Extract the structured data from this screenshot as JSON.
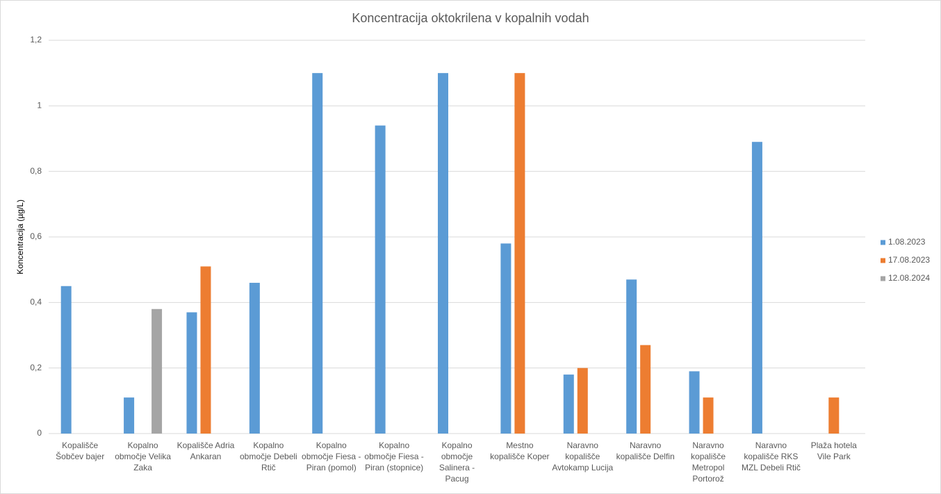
{
  "chart_data": {
    "type": "bar",
    "title": "Koncentracija oktokrilena v kopalnih vodah",
    "y_label": "Koncentracija (µg/L)",
    "categories": [
      "Kopališče Šobčev bajer",
      "Kopalno območje Velika Zaka",
      "Kopališče Adria Ankaran",
      "Kopalno območje Debeli Rtič",
      "Kopalno območje Fiesa - Piran (pomol)",
      "Kopalno območje Fiesa - Piran (stopnice)",
      "Kopalno območje Salinera - Pacug",
      "Mestno kopališče Koper",
      "Naravno kopališče Avtokamp Lucija",
      "Naravno kopališče Delfin",
      "Naravno kopališče Metropol Portorož",
      "Naravno kopališče RKS MZL Debeli Rtič",
      "Plaža hotela Vile Park"
    ],
    "series": [
      {
        "name": "1.08.2023",
        "color": "#5b9bd5",
        "values": [
          0.45,
          0.11,
          0.37,
          0.46,
          1.1,
          0.94,
          1.1,
          0.58,
          0.18,
          0.47,
          0.19,
          0.89,
          null
        ]
      },
      {
        "name": "17.08.2023",
        "color": "#ed7d31",
        "values": [
          null,
          null,
          0.51,
          null,
          null,
          null,
          null,
          1.1,
          0.2,
          0.27,
          0.11,
          null,
          0.11
        ]
      },
      {
        "name": "12.08.2024",
        "color": "#a5a5a5",
        "values": [
          null,
          0.38,
          null,
          null,
          null,
          null,
          null,
          null,
          null,
          null,
          null,
          null,
          null
        ]
      }
    ],
    "ylim": [
      0,
      1.2
    ],
    "yticks": [
      0,
      {
        "value": 0.2,
        "label": "0,2"
      },
      {
        "value": 0.4,
        "label": "0,4"
      },
      {
        "value": 0.6,
        "label": "0,6"
      },
      {
        "value": 0.8,
        "label": "0,8"
      },
      1,
      {
        "value": 1.2,
        "label": "1,2"
      }
    ],
    "grid": true,
    "legend": "right"
  }
}
